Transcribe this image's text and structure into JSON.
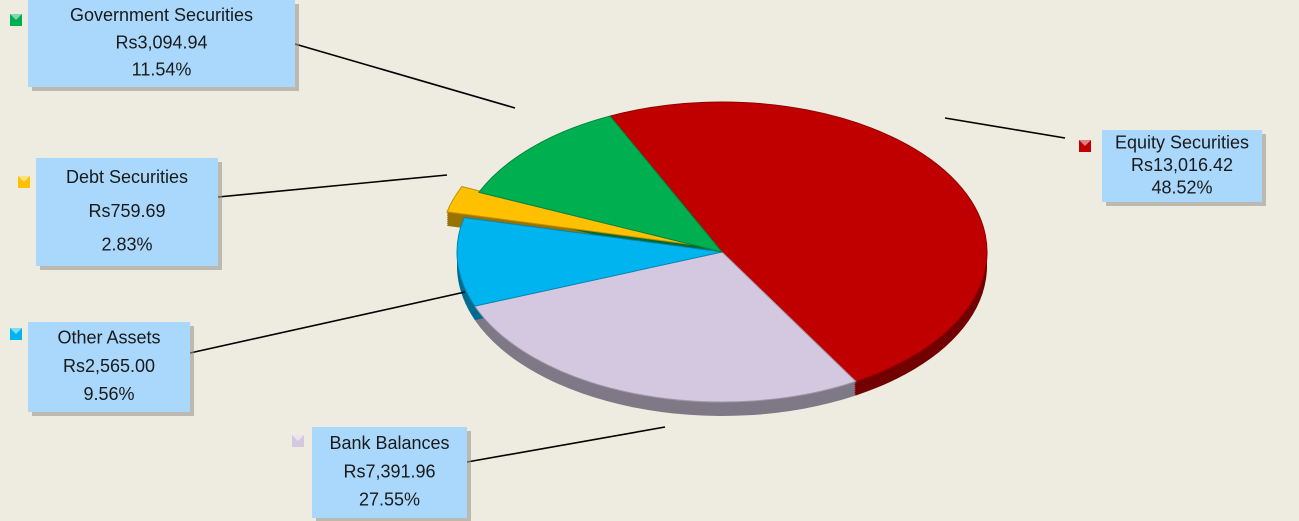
{
  "chart_data": {
    "type": "pie",
    "categories": [
      "Equity Securities",
      "Bank Balances",
      "Other Assets",
      "Debt Securities",
      "Government Securities"
    ],
    "values": [
      48.52,
      27.55,
      9.56,
      2.83,
      11.54
    ],
    "value_labels": [
      "48.52%",
      "27.55%",
      "9.56%",
      "2.83%",
      "11.54%"
    ],
    "amounts": [
      13016.42,
      7391.96,
      2565.0,
      759.69,
      3094.94
    ],
    "amount_labels": [
      "Rs13,016.42",
      "Rs7,391.96",
      "Rs2,565.00",
      "Rs759.69",
      "Rs3,094.94"
    ],
    "colors": [
      "#c00000",
      "#d4c8e0",
      "#00b4f0",
      "#ffc000",
      "#00b050"
    ]
  }
}
